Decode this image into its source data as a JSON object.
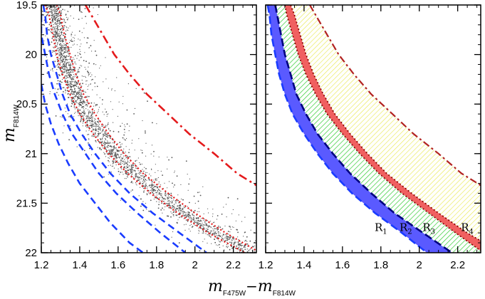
{
  "chart_data": [
    {
      "type": "scatter",
      "panel": "left",
      "xlabel": "m_F475W - m_F814W",
      "ylabel": "m_F814W",
      "xlim": [
        1.2,
        2.32
      ],
      "ylim": [
        22.0,
        19.5
      ],
      "y_inverted": true,
      "xticks": [
        1.2,
        1.4,
        1.6,
        1.8,
        2.0,
        2.2
      ],
      "yticks": [
        19.5,
        20.0,
        20.5,
        21.0,
        21.5,
        22.0
      ],
      "xtick_labels": [
        "1.2",
        "1.4",
        "1.6",
        "1.8",
        "2",
        "2.2"
      ],
      "ytick_labels": [
        "19.5",
        "20",
        "20.5",
        "21",
        "21.5",
        "22"
      ],
      "ridge_line": [
        [
          1.25,
          19.5
        ],
        [
          1.27,
          19.6
        ],
        [
          1.29,
          19.8
        ],
        [
          1.31,
          20.0
        ],
        [
          1.34,
          20.2
        ],
        [
          1.38,
          20.4
        ],
        [
          1.43,
          20.6
        ],
        [
          1.5,
          20.8
        ],
        [
          1.58,
          21.0
        ],
        [
          1.68,
          21.2
        ],
        [
          1.8,
          21.4
        ],
        [
          1.94,
          21.6
        ],
        [
          2.1,
          21.8
        ],
        [
          2.29,
          22.0
        ]
      ],
      "series": [
        {
          "name": "red dotted boundary (blue side)",
          "color": "#e41a1c",
          "style": "dotted",
          "points": [
            [
              1.22,
              19.5
            ],
            [
              1.24,
              19.6
            ],
            [
              1.26,
              19.8
            ],
            [
              1.28,
              20.0
            ],
            [
              1.31,
              20.2
            ],
            [
              1.35,
              20.4
            ],
            [
              1.4,
              20.6
            ],
            [
              1.47,
              20.8
            ],
            [
              1.55,
              21.0
            ],
            [
              1.65,
              21.2
            ],
            [
              1.77,
              21.4
            ],
            [
              1.91,
              21.6
            ],
            [
              2.07,
              21.8
            ],
            [
              2.26,
              22.0
            ]
          ]
        },
        {
          "name": "red dotted boundary (red side)",
          "color": "#e41a1c",
          "style": "dotted",
          "points": [
            [
              1.28,
              19.5
            ],
            [
              1.3,
              19.6
            ],
            [
              1.32,
              19.8
            ],
            [
              1.35,
              20.0
            ],
            [
              1.38,
              20.2
            ],
            [
              1.42,
              20.4
            ],
            [
              1.48,
              20.6
            ],
            [
              1.55,
              20.8
            ],
            [
              1.63,
              21.0
            ],
            [
              1.73,
              21.2
            ],
            [
              1.86,
              21.4
            ],
            [
              2.0,
              21.6
            ],
            [
              2.16,
              21.8
            ],
            [
              2.34,
              22.0
            ]
          ]
        },
        {
          "name": "blue dashed line 1",
          "color": "#1a3cff",
          "style": "dashed",
          "points": [
            [
              1.21,
              19.5
            ],
            [
              1.22,
              19.6
            ],
            [
              1.23,
              19.8
            ],
            [
              1.25,
              20.0
            ],
            [
              1.28,
              20.2
            ],
            [
              1.31,
              20.4
            ],
            [
              1.35,
              20.6
            ],
            [
              1.41,
              20.8
            ],
            [
              1.48,
              21.0
            ],
            [
              1.56,
              21.2
            ],
            [
              1.66,
              21.4
            ],
            [
              1.78,
              21.6
            ],
            [
              1.92,
              21.8
            ],
            [
              2.06,
              22.0
            ]
          ]
        },
        {
          "name": "blue dashed line 2",
          "color": "#1a3cff",
          "style": "dashed",
          "points": [
            [
              1.2,
              19.6
            ],
            [
              1.2,
              19.8
            ],
            [
              1.22,
              20.0
            ],
            [
              1.24,
              20.2
            ],
            [
              1.27,
              20.4
            ],
            [
              1.31,
              20.6
            ],
            [
              1.36,
              20.8
            ],
            [
              1.43,
              21.0
            ],
            [
              1.5,
              21.2
            ],
            [
              1.59,
              21.4
            ],
            [
              1.7,
              21.6
            ],
            [
              1.82,
              21.8
            ],
            [
              1.95,
              22.0
            ]
          ]
        },
        {
          "name": "blue dashed line 3",
          "color": "#1a3cff",
          "style": "dashed",
          "points": [
            [
              1.2,
              20.3
            ],
            [
              1.22,
              20.5
            ],
            [
              1.25,
              20.7
            ],
            [
              1.29,
              20.9
            ],
            [
              1.34,
              21.1
            ],
            [
              1.4,
              21.3
            ],
            [
              1.48,
              21.5
            ],
            [
              1.56,
              21.7
            ],
            [
              1.66,
              21.9
            ],
            [
              1.73,
              22.0
            ]
          ]
        },
        {
          "name": "red dash-dot line",
          "color": "#e41a1c",
          "style": "dashdot",
          "points": [
            [
              1.43,
              19.5
            ],
            [
              1.46,
              19.6
            ],
            [
              1.52,
              19.8
            ],
            [
              1.58,
              20.0
            ],
            [
              1.66,
              20.2
            ],
            [
              1.75,
              20.4
            ],
            [
              1.86,
              20.6
            ],
            [
              1.97,
              20.8
            ],
            [
              2.1,
              21.0
            ],
            [
              2.22,
              21.2
            ],
            [
              2.32,
              21.32
            ]
          ]
        }
      ]
    },
    {
      "type": "area",
      "panel": "right",
      "xlabel": "m_F475W - m_F814W",
      "xlim": [
        1.2,
        2.32
      ],
      "ylim": [
        22.0,
        19.5
      ],
      "y_inverted": true,
      "xticks": [
        1.2,
        1.4,
        1.6,
        1.8,
        2.0,
        2.2
      ],
      "xtick_labels": [
        "1.2",
        "1.4",
        "1.6",
        "1.8",
        "2",
        "2.2"
      ],
      "boundaries": {
        "outer_blue": [
          [
            1.21,
            19.5
          ],
          [
            1.22,
            19.6
          ],
          [
            1.23,
            19.8
          ],
          [
            1.25,
            20.0
          ],
          [
            1.27,
            20.2
          ],
          [
            1.3,
            20.4
          ],
          [
            1.34,
            20.6
          ],
          [
            1.4,
            20.8
          ],
          [
            1.47,
            21.0
          ],
          [
            1.55,
            21.2
          ],
          [
            1.65,
            21.4
          ],
          [
            1.77,
            21.6
          ],
          [
            1.91,
            21.8
          ],
          [
            2.04,
            22.0
          ]
        ],
        "blue_dashed": [
          [
            1.25,
            19.5
          ],
          [
            1.26,
            19.6
          ],
          [
            1.28,
            19.8
          ],
          [
            1.3,
            20.0
          ],
          [
            1.33,
            20.2
          ],
          [
            1.36,
            20.4
          ],
          [
            1.41,
            20.6
          ],
          [
            1.47,
            20.8
          ],
          [
            1.55,
            21.0
          ],
          [
            1.64,
            21.2
          ],
          [
            1.75,
            21.4
          ],
          [
            1.87,
            21.6
          ],
          [
            2.02,
            21.8
          ],
          [
            2.17,
            22.0
          ]
        ],
        "red_inner": [
          [
            1.3,
            19.5
          ],
          [
            1.31,
            19.6
          ],
          [
            1.34,
            19.8
          ],
          [
            1.37,
            20.0
          ],
          [
            1.41,
            20.2
          ],
          [
            1.46,
            20.4
          ],
          [
            1.52,
            20.6
          ],
          [
            1.6,
            20.8
          ],
          [
            1.69,
            21.0
          ],
          [
            1.79,
            21.2
          ],
          [
            1.91,
            21.4
          ],
          [
            2.05,
            21.6
          ],
          [
            2.19,
            21.8
          ],
          [
            2.32,
            21.98
          ]
        ],
        "red_outer": [
          [
            1.33,
            19.5
          ],
          [
            1.35,
            19.6
          ],
          [
            1.38,
            19.8
          ],
          [
            1.41,
            20.0
          ],
          [
            1.45,
            20.2
          ],
          [
            1.5,
            20.4
          ],
          [
            1.56,
            20.6
          ],
          [
            1.64,
            20.8
          ],
          [
            1.73,
            21.0
          ],
          [
            1.83,
            21.2
          ],
          [
            1.96,
            21.4
          ],
          [
            2.1,
            21.6
          ],
          [
            2.25,
            21.8
          ],
          [
            2.32,
            21.88
          ]
        ],
        "dashdot": [
          [
            1.43,
            19.5
          ],
          [
            1.46,
            19.6
          ],
          [
            1.52,
            19.8
          ],
          [
            1.58,
            20.0
          ],
          [
            1.66,
            20.2
          ],
          [
            1.75,
            20.4
          ],
          [
            1.86,
            20.6
          ],
          [
            1.97,
            20.8
          ],
          [
            2.1,
            21.0
          ],
          [
            2.22,
            21.2
          ],
          [
            2.32,
            21.32
          ]
        ]
      },
      "regions": [
        {
          "label": "R",
          "sub": "1",
          "name": "R1 blue band",
          "color": "#5a5aff",
          "x": 1.8,
          "y": 21.78
        },
        {
          "label": "R",
          "sub": "2",
          "name": "R2 green hatched band",
          "color": "#33cc33",
          "x": 1.93,
          "y": 21.78
        },
        {
          "label": "R",
          "sub": "3",
          "name": "R3 red band",
          "color": "#f06060",
          "x": 2.05,
          "y": 21.78
        },
        {
          "label": "R",
          "sub": "4",
          "name": "R4 yellow hatched band",
          "color": "#ffff66",
          "x": 2.25,
          "y": 21.78
        }
      ]
    }
  ],
  "axis_titles": {
    "y_main": "m",
    "y_sub": "F814W",
    "x_main_1": "m",
    "x_sub_1": "F475W",
    "x_minus": "−",
    "x_main_2": "m",
    "x_sub_2": "F814W"
  },
  "colors": {
    "red": "#e41a1c",
    "blue": "#1a3cff",
    "dark_red": "#b22222",
    "points": "#555555"
  }
}
